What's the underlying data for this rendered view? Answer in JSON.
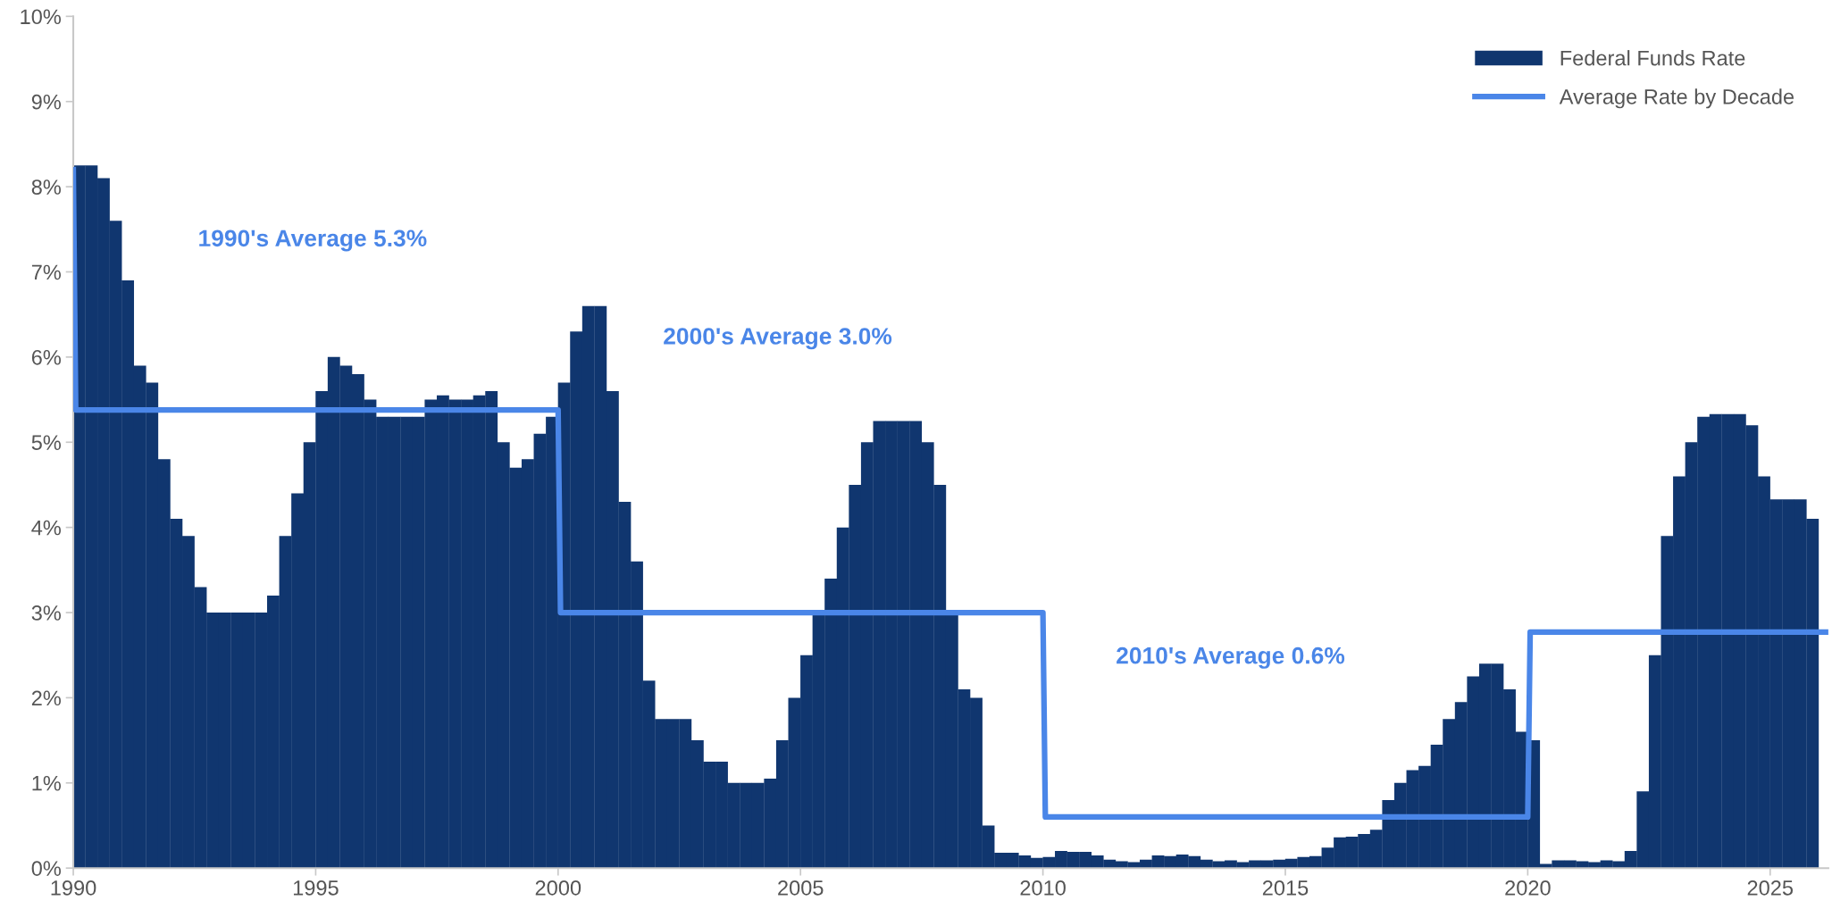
{
  "chart_data": {
    "type": "bar",
    "xlim": [
      1990,
      2026.2
    ],
    "xticks": [
      1990,
      1995,
      2000,
      2005,
      2010,
      2015,
      2020,
      2025
    ],
    "ylim": [
      0,
      10
    ],
    "yticks": [
      {
        "value": 0,
        "label": "0%"
      },
      {
        "value": 1,
        "label": "1%"
      },
      {
        "value": 2,
        "label": "2%"
      },
      {
        "value": 3,
        "label": "3%"
      },
      {
        "value": 4,
        "label": "4%"
      },
      {
        "value": 5,
        "label": "5%"
      },
      {
        "value": 6,
        "label": "6%"
      },
      {
        "value": 7,
        "label": "7%"
      },
      {
        "value": 8,
        "label": "8%"
      },
      {
        "value": 9,
        "label": "9%"
      },
      {
        "value": 10,
        "label": "10%"
      }
    ],
    "grid": false,
    "legend": "top right",
    "annotations": [
      "1990's Average 5.3%",
      "2000's Average 3.0%",
      "2010's Average 0.6%"
    ],
    "series": [
      {
        "name": "Federal Funds Rate",
        "color": "#10366f",
        "x": [
          1990.125,
          1990.375,
          1990.625,
          1990.875,
          1991.125,
          1991.375,
          1991.625,
          1991.875,
          1992.125,
          1992.375,
          1992.625,
          1992.875,
          1993.125,
          1993.375,
          1993.625,
          1993.875,
          1994.125,
          1994.375,
          1994.625,
          1994.875,
          1995.125,
          1995.375,
          1995.625,
          1995.875,
          1996.125,
          1996.375,
          1996.625,
          1996.875,
          1997.125,
          1997.375,
          1997.625,
          1997.875,
          1998.125,
          1998.375,
          1998.625,
          1998.875,
          1999.125,
          1999.375,
          1999.625,
          1999.875,
          2000.125,
          2000.375,
          2000.625,
          2000.875,
          2001.125,
          2001.375,
          2001.625,
          2001.875,
          2002.125,
          2002.375,
          2002.625,
          2002.875,
          2003.125,
          2003.375,
          2003.625,
          2003.875,
          2004.125,
          2004.375,
          2004.625,
          2004.875,
          2005.125,
          2005.375,
          2005.625,
          2005.875,
          2006.125,
          2006.375,
          2006.625,
          2006.875,
          2007.125,
          2007.375,
          2007.625,
          2007.875,
          2008.125,
          2008.375,
          2008.625,
          2008.875,
          2009.125,
          2009.375,
          2009.625,
          2009.875,
          2010.125,
          2010.375,
          2010.625,
          2010.875,
          2011.125,
          2011.375,
          2011.625,
          2011.875,
          2012.125,
          2012.375,
          2012.625,
          2012.875,
          2013.125,
          2013.375,
          2013.625,
          2013.875,
          2014.125,
          2014.375,
          2014.625,
          2014.875,
          2015.125,
          2015.375,
          2015.625,
          2015.875,
          2016.125,
          2016.375,
          2016.625,
          2016.875,
          2017.125,
          2017.375,
          2017.625,
          2017.875,
          2018.125,
          2018.375,
          2018.625,
          2018.875,
          2019.125,
          2019.375,
          2019.625,
          2019.875,
          2020.125,
          2020.375,
          2020.625,
          2020.875,
          2021.125,
          2021.375,
          2021.625,
          2021.875,
          2022.125,
          2022.375,
          2022.625,
          2022.875,
          2023.125,
          2023.375,
          2023.625,
          2023.875,
          2024.125,
          2024.375,
          2024.625,
          2024.875,
          2025.125,
          2025.375,
          2025.625,
          2025.875
        ],
        "values": [
          8.25,
          8.25,
          8.1,
          7.6,
          6.9,
          5.9,
          5.7,
          4.8,
          4.1,
          3.9,
          3.3,
          3.0,
          3.0,
          3.0,
          3.0,
          3.0,
          3.2,
          3.9,
          4.4,
          5.0,
          5.6,
          6.0,
          5.9,
          5.8,
          5.5,
          5.3,
          5.3,
          5.3,
          5.3,
          5.5,
          5.55,
          5.5,
          5.5,
          5.55,
          5.6,
          5.0,
          4.7,
          4.8,
          5.1,
          5.3,
          5.7,
          6.3,
          6.6,
          6.6,
          5.6,
          4.3,
          3.6,
          2.2,
          1.75,
          1.75,
          1.75,
          1.5,
          1.25,
          1.25,
          1.0,
          1.0,
          1.0,
          1.05,
          1.5,
          2.0,
          2.5,
          3.0,
          3.4,
          4.0,
          4.5,
          5.0,
          5.25,
          5.25,
          5.25,
          5.25,
          5.0,
          4.5,
          3.0,
          2.1,
          2.0,
          0.5,
          0.18,
          0.18,
          0.15,
          0.12,
          0.13,
          0.2,
          0.19,
          0.19,
          0.15,
          0.1,
          0.08,
          0.07,
          0.1,
          0.15,
          0.14,
          0.16,
          0.14,
          0.1,
          0.08,
          0.09,
          0.07,
          0.09,
          0.09,
          0.1,
          0.11,
          0.13,
          0.14,
          0.24,
          0.36,
          0.37,
          0.4,
          0.45,
          0.8,
          1.0,
          1.15,
          1.2,
          1.45,
          1.75,
          1.95,
          2.25,
          2.4,
          2.4,
          2.1,
          1.6,
          1.5,
          0.05,
          0.09,
          0.09,
          0.08,
          0.07,
          0.09,
          0.08,
          0.2,
          0.9,
          2.5,
          3.9,
          4.6,
          5.0,
          5.3,
          5.33,
          5.33,
          5.33,
          5.2,
          4.6,
          4.33,
          4.33,
          4.33,
          4.1
        ]
      },
      {
        "name": "Average Rate by Decade",
        "type": "step",
        "color": "#4a86e8",
        "x": [
          1990,
          1990.05,
          2000,
          2000.05,
          2010,
          2010.05,
          2020,
          2020.05,
          2026.2
        ],
        "values": [
          8.2,
          5.38,
          5.38,
          3.0,
          3.0,
          0.6,
          0.6,
          2.77,
          2.77
        ]
      }
    ]
  }
}
